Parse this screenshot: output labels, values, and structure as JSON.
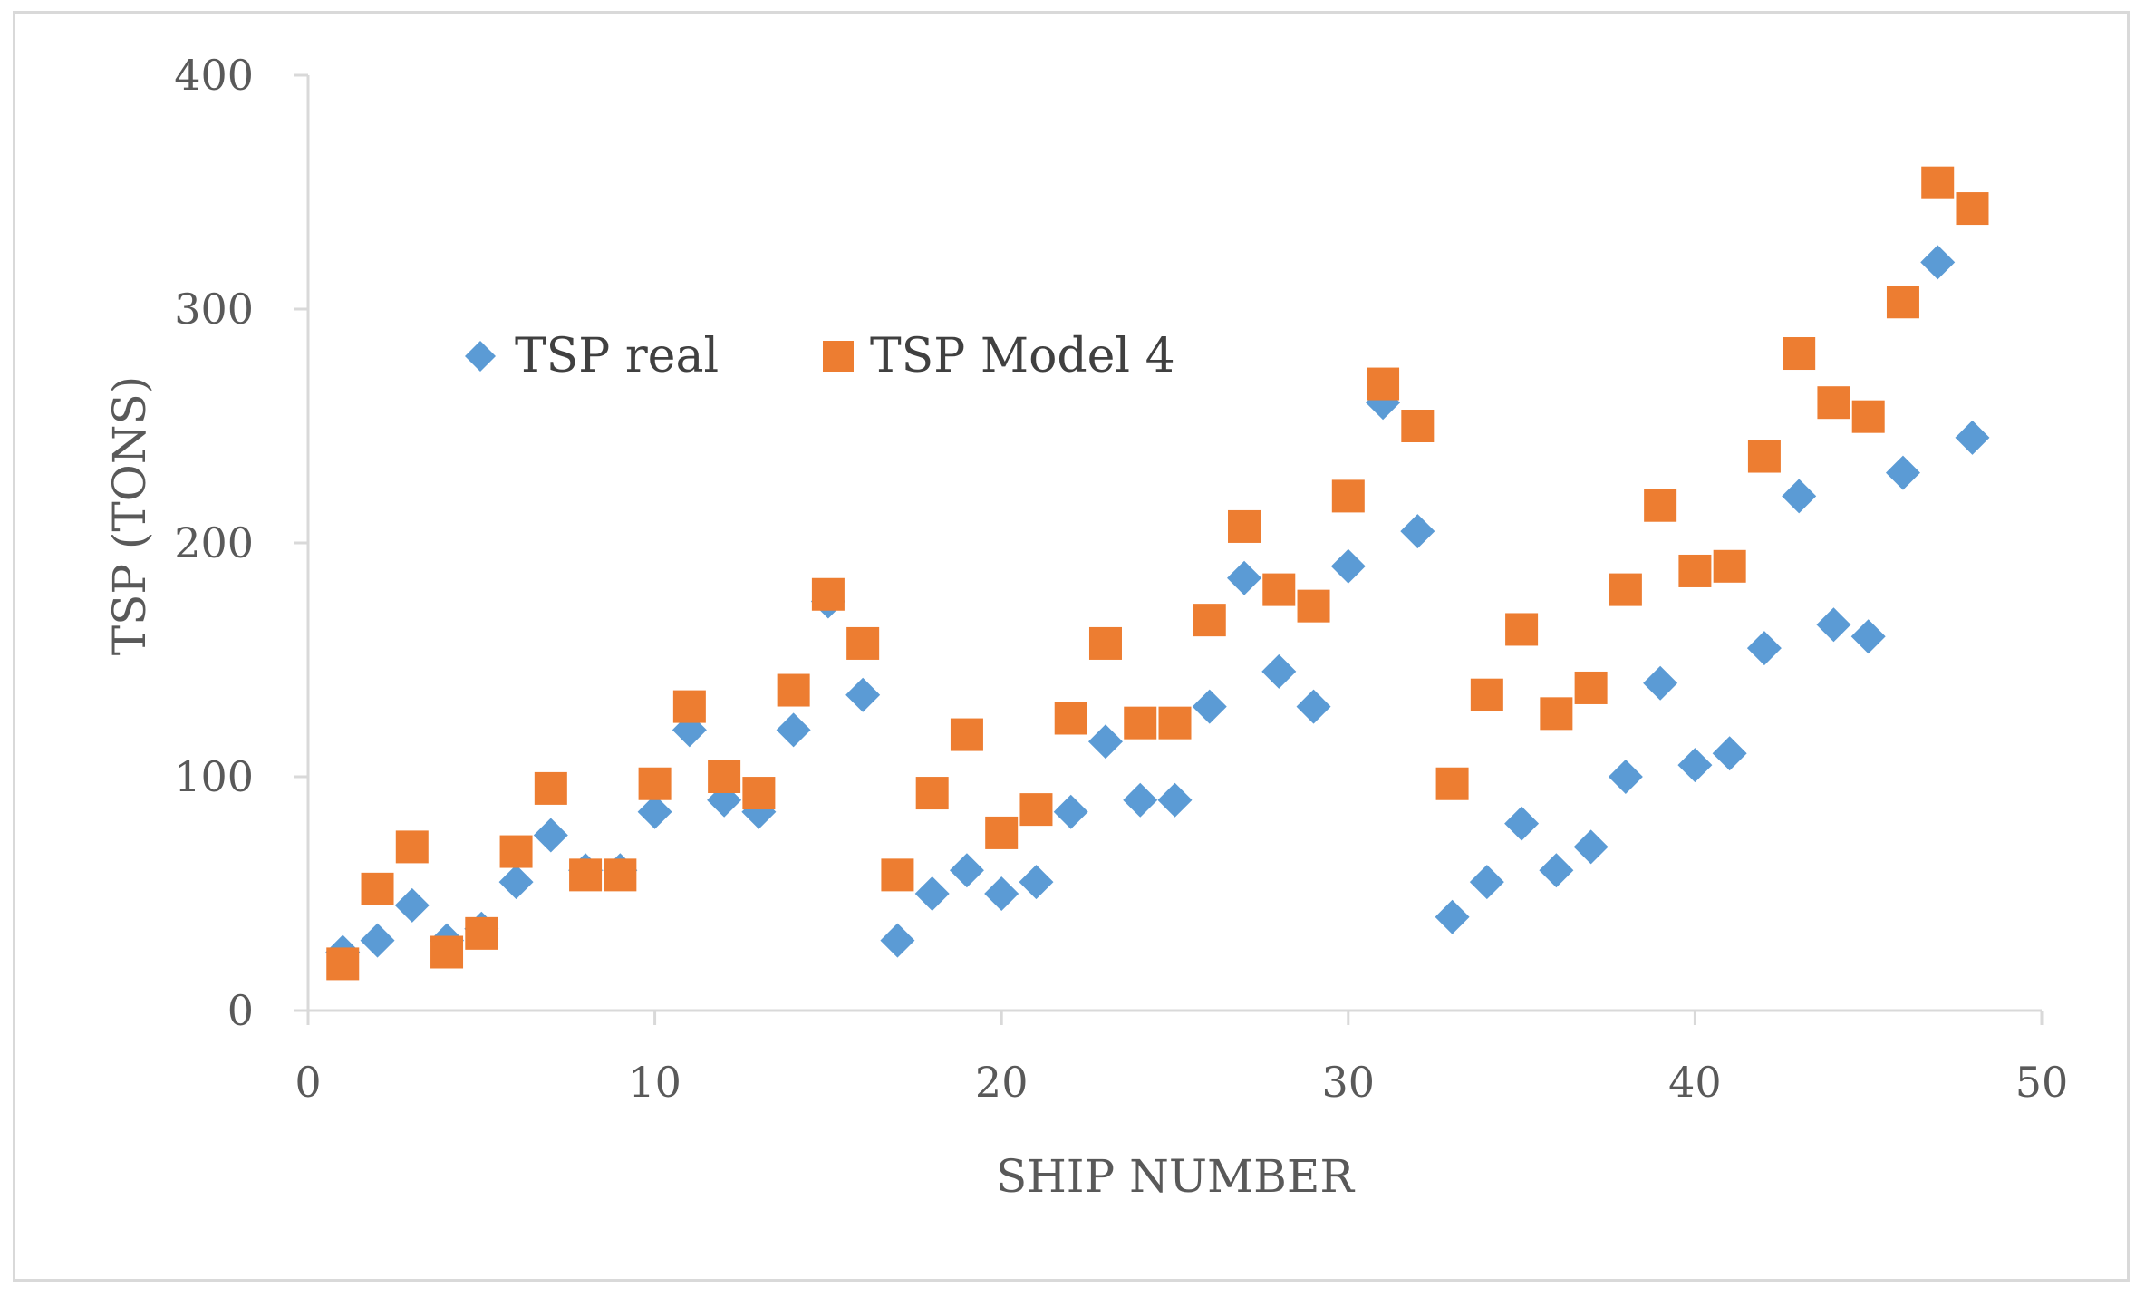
{
  "chart_data": {
    "type": "scatter",
    "title": "",
    "xlabel": "SHIP NUMBER",
    "ylabel": "TSP (TONS)",
    "xlim": [
      0,
      50
    ],
    "ylim": [
      0,
      400
    ],
    "xticks": [
      0,
      10,
      20,
      30,
      40,
      50
    ],
    "yticks": [
      0,
      100,
      200,
      300,
      400
    ],
    "grid": false,
    "legend_position": "top-left inside",
    "series": [
      {
        "name": "TSP real",
        "marker": "diamond",
        "color": "#5b9bd5",
        "x": [
          1,
          2,
          3,
          4,
          5,
          6,
          7,
          8,
          9,
          10,
          11,
          12,
          13,
          14,
          15,
          16,
          17,
          18,
          19,
          20,
          21,
          22,
          23,
          24,
          25,
          26,
          27,
          28,
          29,
          30,
          31,
          32,
          33,
          34,
          35,
          36,
          37,
          38,
          39,
          40,
          41,
          42,
          43,
          44,
          45,
          46,
          47,
          48
        ],
        "y": [
          25,
          30,
          45,
          30,
          35,
          55,
          75,
          60,
          60,
          85,
          120,
          90,
          85,
          120,
          175,
          135,
          30,
          50,
          60,
          50,
          55,
          85,
          115,
          90,
          90,
          130,
          185,
          145,
          130,
          190,
          260,
          205,
          40,
          55,
          80,
          60,
          70,
          100,
          140,
          105,
          110,
          155,
          220,
          165,
          160,
          230,
          320,
          245
        ]
      },
      {
        "name": "TSP Model 4",
        "marker": "square",
        "color": "#ed7d31",
        "x": [
          1,
          2,
          3,
          4,
          5,
          6,
          7,
          8,
          9,
          10,
          11,
          12,
          13,
          14,
          15,
          16,
          17,
          18,
          19,
          20,
          21,
          22,
          23,
          24,
          25,
          26,
          27,
          28,
          29,
          30,
          31,
          32,
          33,
          34,
          35,
          36,
          37,
          38,
          39,
          40,
          41,
          42,
          43,
          44,
          45,
          46,
          47,
          48
        ],
        "y": [
          20,
          52,
          70,
          25,
          33,
          68,
          95,
          58,
          58,
          97,
          130,
          100,
          93,
          137,
          178,
          157,
          58,
          93,
          118,
          76,
          86,
          125,
          157,
          123,
          123,
          167,
          207,
          180,
          173,
          220,
          268,
          250,
          97,
          135,
          163,
          127,
          138,
          180,
          216,
          188,
          190,
          237,
          281,
          260,
          254,
          303,
          354,
          343
        ]
      }
    ]
  }
}
